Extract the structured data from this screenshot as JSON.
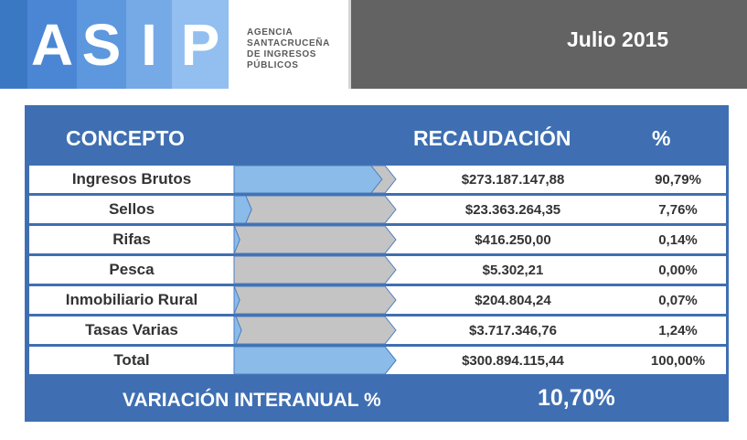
{
  "header": {
    "logo_letters": [
      "A",
      "S",
      "I",
      "P"
    ],
    "agency_lines": [
      "AGENCIA",
      "SANTACRUCEÑA",
      "DE INGRESOS",
      "PÚBLICOS"
    ],
    "period": "Julio 2015"
  },
  "colors": {
    "panel_blue": "#3f6fb2",
    "bar_blue": "#8bbbe8",
    "bar_gray": "#c4c4c4",
    "header_gray": "#636363",
    "logo_tiles": [
      "#4a86d4",
      "#5d97de",
      "#76aae7",
      "#92bff0"
    ]
  },
  "table": {
    "headers": {
      "concepto": "CONCEPTO",
      "recaudacion": "RECAUDACIÓN",
      "pct": "%"
    },
    "rows": [
      {
        "label": "Ingresos Brutos",
        "amount": "$273.187.147,88",
        "pct": "90,79%",
        "share": 0.9079
      },
      {
        "label": "Sellos",
        "amount": "$23.363.264,35",
        "pct": "7,76%",
        "share": 0.0776
      },
      {
        "label": "Rifas",
        "amount": "$416.250,00",
        "pct": "0,14%",
        "share": 0.0014
      },
      {
        "label": "Pesca",
        "amount": "$5.302,21",
        "pct": "0,00%",
        "share": 0.0
      },
      {
        "label": "Inmobiliario Rural",
        "amount": "$204.804,24",
        "pct": "0,07%",
        "share": 0.0007
      },
      {
        "label": "Tasas Varias",
        "amount": "$3.717.346,76",
        "pct": "1,24%",
        "share": 0.0124
      },
      {
        "label": "Total",
        "amount": "$300.894.115,44",
        "pct": "100,00%",
        "share": 1.0
      }
    ]
  },
  "footer": {
    "label": "VARIACIÓN INTERANUAL %",
    "value": "10,70%"
  },
  "chart_data": {
    "type": "bar",
    "orientation": "horizontal",
    "categories": [
      "Ingresos Brutos",
      "Sellos",
      "Rifas",
      "Pesca",
      "Inmobiliario Rural",
      "Tasas Varias",
      "Total"
    ],
    "values": [
      90.79,
      7.76,
      0.14,
      0.0,
      0.07,
      1.24,
      100.0
    ],
    "xlim": [
      0,
      100
    ]
  }
}
